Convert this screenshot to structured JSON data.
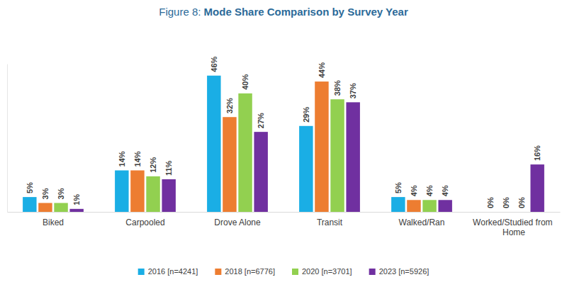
{
  "chart_data": {
    "type": "bar",
    "title": "Figure 8: Mode Share Comparison by Survey Year",
    "categories": [
      "Biked",
      "Carpooled",
      "Drove Alone",
      "Transit",
      "Walked/Ran",
      "Worked/Studied from Home"
    ],
    "series": [
      {
        "name": "2016 [n=4241]",
        "color": "#1aaee5",
        "values": [
          5,
          14,
          46,
          29,
          5,
          0
        ],
        "value_labels": [
          "5%",
          "14%",
          "46%",
          "29%",
          "5%",
          "0%"
        ]
      },
      {
        "name": "2018 [n=6776]",
        "color": "#ed7d31",
        "values": [
          3,
          14,
          32,
          44,
          4,
          0
        ],
        "value_labels": [
          "3%",
          "14%",
          "32%",
          "44%",
          "4%",
          "0%"
        ]
      },
      {
        "name": "2020 [n=3701]",
        "color": "#92d050",
        "values": [
          3,
          12,
          40,
          38,
          4,
          0
        ],
        "value_labels": [
          "3%",
          "12%",
          "40%",
          "38%",
          "4%",
          "0%"
        ]
      },
      {
        "name": "2023 [n=5926]",
        "color": "#7030a0",
        "values": [
          1,
          11,
          27,
          37,
          4,
          16
        ],
        "value_labels": [
          "1%",
          "11%",
          "27%",
          "37%",
          "4%",
          "16%"
        ]
      }
    ],
    "ylim": [
      0,
      50
    ],
    "data_labels": true,
    "tick_labels": "x",
    "grid": false,
    "legend": "bottom"
  }
}
